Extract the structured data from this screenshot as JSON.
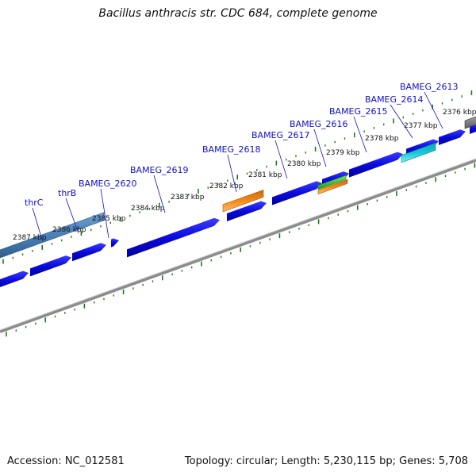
{
  "title": "Bacillus anthracis str. CDC 684, complete genome",
  "footer": {
    "accession": "Accession: NC_012581",
    "summary": "Topology: circular; Length: 5,230,115 bp; Genes: 5,708"
  },
  "colors": {
    "forward_cds": "#0a0adc",
    "rna": "#4a7fb5",
    "orange_feature": "#f5891a",
    "green_feature": "#2fb52f",
    "cyan_feature": "#16c7d6",
    "gray_feature": "#808080",
    "ticks": "#1a7a1a",
    "backbone": "#8c8c8c",
    "label": "#1010cc"
  },
  "scale_ticks": [
    {
      "kbp": 2387,
      "label": "2387 kbp"
    },
    {
      "kbp": 2386,
      "label": "2386 kbp"
    },
    {
      "kbp": 2385,
      "label": "2385 kbp"
    },
    {
      "kbp": 2384,
      "label": "2384 kbp"
    },
    {
      "kbp": 2383,
      "label": "2383 kbp"
    },
    {
      "kbp": 2382,
      "label": "2382 kbp"
    },
    {
      "kbp": 2381,
      "label": "2381 kbp"
    },
    {
      "kbp": 2380,
      "label": "2380 kbp"
    },
    {
      "kbp": 2379,
      "label": "2379 kbp"
    },
    {
      "kbp": 2378,
      "label": "2378 kbp"
    },
    {
      "kbp": 2377,
      "label": "2377 kbp"
    },
    {
      "kbp": 2376,
      "label": "2376 kbp"
    }
  ],
  "gene_labels": [
    {
      "name": "thrC"
    },
    {
      "name": "thrB"
    },
    {
      "name": "BAMEG_2620"
    },
    {
      "name": "BAMEG_2619"
    },
    {
      "name": "BAMEG_2618"
    },
    {
      "name": "BAMEG_2617"
    },
    {
      "name": "BAMEG_2616"
    },
    {
      "name": "BAMEG_2615"
    },
    {
      "name": "BAMEG_2614"
    },
    {
      "name": "BAMEG_2613"
    }
  ]
}
